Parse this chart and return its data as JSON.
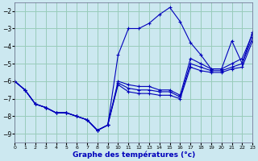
{
  "xlabel": "Graphe des températures (°c)",
  "background_color": "#cce8f0",
  "grid_color": "#99ccbb",
  "line_color": "#0000bb",
  "xlim": [
    0,
    23
  ],
  "ylim": [
    -9.5,
    -1.5
  ],
  "yticks": [
    -9,
    -8,
    -7,
    -6,
    -5,
    -4,
    -3,
    -2
  ],
  "xticks": [
    0,
    1,
    2,
    3,
    4,
    5,
    6,
    7,
    8,
    9,
    10,
    11,
    12,
    13,
    14,
    15,
    16,
    17,
    18,
    19,
    20,
    21,
    22,
    23
  ],
  "hours": [
    0,
    1,
    2,
    3,
    4,
    5,
    6,
    7,
    8,
    9,
    10,
    11,
    12,
    13,
    14,
    15,
    16,
    17,
    18,
    19,
    20,
    21,
    22,
    23
  ],
  "line1": [
    -6.0,
    -6.5,
    -7.3,
    -7.5,
    -7.8,
    -7.8,
    -8.0,
    -8.2,
    -8.8,
    -8.5,
    -4.5,
    -3.0,
    -3.0,
    -2.7,
    -2.2,
    -1.8,
    -2.6,
    -3.8,
    -4.5,
    -5.3,
    -5.3,
    -3.7,
    -5.0,
    -3.2
  ],
  "line2": [
    -6.0,
    -6.5,
    -7.3,
    -7.5,
    -7.8,
    -7.8,
    -8.0,
    -8.2,
    -8.8,
    -8.5,
    -6.0,
    -6.2,
    -6.3,
    -6.3,
    -6.5,
    -6.5,
    -6.8,
    -4.7,
    -5.0,
    -5.3,
    -5.3,
    -5.0,
    -4.7,
    -3.3
  ],
  "line3": [
    -6.0,
    -6.5,
    -7.3,
    -7.5,
    -7.8,
    -7.8,
    -8.0,
    -8.2,
    -8.8,
    -8.5,
    -6.1,
    -6.4,
    -6.5,
    -6.5,
    -6.6,
    -6.6,
    -6.9,
    -5.0,
    -5.2,
    -5.4,
    -5.4,
    -5.2,
    -5.0,
    -3.5
  ],
  "line4": [
    -6.0,
    -6.5,
    -7.3,
    -7.5,
    -7.8,
    -7.8,
    -8.0,
    -8.2,
    -8.8,
    -8.5,
    -6.2,
    -6.6,
    -6.7,
    -6.7,
    -6.8,
    -6.8,
    -7.0,
    -5.2,
    -5.4,
    -5.5,
    -5.5,
    -5.3,
    -5.2,
    -3.7
  ]
}
